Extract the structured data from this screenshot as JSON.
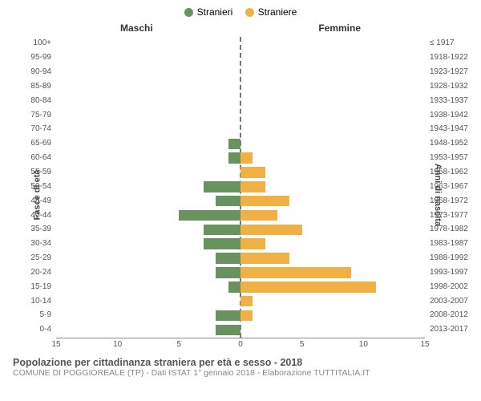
{
  "legend": {
    "male": {
      "label": "Stranieri",
      "color": "#68935f"
    },
    "female": {
      "label": "Straniere",
      "color": "#f0b043"
    }
  },
  "headers": {
    "left": "Maschi",
    "right": "Femmine"
  },
  "axes": {
    "left_title": "Fasce di età",
    "right_title": "Anni di nascita",
    "x_max": 15,
    "x_ticks_left": [
      15,
      10,
      5,
      0
    ],
    "x_ticks_right": [
      5,
      10,
      15
    ]
  },
  "colors": {
    "background": "#ffffff",
    "grid": "#888888",
    "center_dash": "#777777",
    "text": "#555555"
  },
  "rows": [
    {
      "age": "100+",
      "birth": "≤ 1917",
      "m": 0,
      "f": 0
    },
    {
      "age": "95-99",
      "birth": "1918-1922",
      "m": 0,
      "f": 0
    },
    {
      "age": "90-94",
      "birth": "1923-1927",
      "m": 0,
      "f": 0
    },
    {
      "age": "85-89",
      "birth": "1928-1932",
      "m": 0,
      "f": 0
    },
    {
      "age": "80-84",
      "birth": "1933-1937",
      "m": 0,
      "f": 0
    },
    {
      "age": "75-79",
      "birth": "1938-1942",
      "m": 0,
      "f": 0
    },
    {
      "age": "70-74",
      "birth": "1943-1947",
      "m": 0,
      "f": 0
    },
    {
      "age": "65-69",
      "birth": "1948-1952",
      "m": 1,
      "f": 0
    },
    {
      "age": "60-64",
      "birth": "1953-1957",
      "m": 1,
      "f": 1
    },
    {
      "age": "55-59",
      "birth": "1958-1962",
      "m": 0,
      "f": 2
    },
    {
      "age": "50-54",
      "birth": "1963-1967",
      "m": 3,
      "f": 2
    },
    {
      "age": "45-49",
      "birth": "1968-1972",
      "m": 2,
      "f": 4
    },
    {
      "age": "40-44",
      "birth": "1973-1977",
      "m": 5,
      "f": 3
    },
    {
      "age": "35-39",
      "birth": "1978-1982",
      "m": 3,
      "f": 5
    },
    {
      "age": "30-34",
      "birth": "1983-1987",
      "m": 3,
      "f": 2
    },
    {
      "age": "25-29",
      "birth": "1988-1992",
      "m": 2,
      "f": 4
    },
    {
      "age": "20-24",
      "birth": "1993-1997",
      "m": 2,
      "f": 9
    },
    {
      "age": "15-19",
      "birth": "1998-2002",
      "m": 1,
      "f": 11
    },
    {
      "age": "10-14",
      "birth": "2003-2007",
      "m": 0,
      "f": 1
    },
    {
      "age": "5-9",
      "birth": "2008-2012",
      "m": 2,
      "f": 1
    },
    {
      "age": "0-4",
      "birth": "2013-2017",
      "m": 2,
      "f": 0
    }
  ],
  "footer": {
    "title": "Popolazione per cittadinanza straniera per età e sesso - 2018",
    "subtitle": "COMUNE DI POGGIOREALE (TP) - Dati ISTAT 1° gennaio 2018 - Elaborazione TUTTITALIA.IT"
  }
}
